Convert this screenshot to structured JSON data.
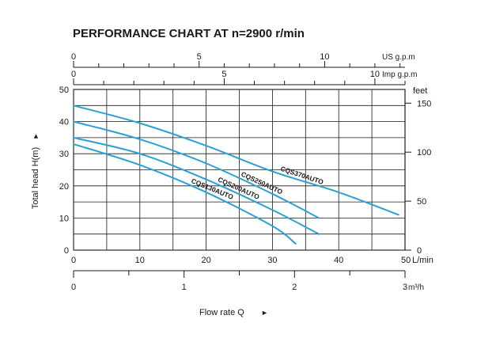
{
  "chart_data": {
    "type": "line",
    "title": "PERFORMANCE CHART AT n=2900 r/min",
    "xlabel": "Flow rate  Q",
    "ylabel": "Total  head H(m)",
    "xlim": [
      0,
      50
    ],
    "ylim": [
      0,
      50
    ],
    "grid": true,
    "x_unit": "L/min",
    "x_ticks": [
      0,
      10,
      20,
      30,
      40,
      50
    ],
    "y_ticks": [
      0,
      10,
      20,
      30,
      40,
      50
    ],
    "secondary_axes": {
      "us_gpm": {
        "label": "US g.p.m",
        "max": 13.2,
        "ticks": [
          0,
          5,
          10
        ]
      },
      "imp_gpm": {
        "label": "Imp g.p.m",
        "max": 11,
        "ticks": [
          0,
          5,
          10
        ]
      },
      "feet": {
        "label": "feet",
        "max": 164,
        "ticks": [
          0,
          50,
          100,
          150
        ]
      },
      "m3h": {
        "label": "m³/h",
        "max": 3,
        "ticks": [
          0,
          1,
          2,
          3
        ]
      }
    },
    "series": [
      {
        "name": "CQS370AUTO",
        "x": [
          0,
          10,
          20,
          30,
          40,
          49
        ],
        "y": [
          45,
          39.5,
          32.5,
          24.5,
          18,
          11
        ]
      },
      {
        "name": "CQS250AUTO",
        "x": [
          0,
          10,
          20,
          30,
          37
        ],
        "y": [
          40,
          34.5,
          27,
          17.5,
          10
        ]
      },
      {
        "name": "CQS200AUTO",
        "x": [
          0,
          10,
          20,
          30,
          37
        ],
        "y": [
          35,
          30,
          22,
          12.5,
          5
        ]
      },
      {
        "name": "CQS130AUTO",
        "x": [
          0,
          10,
          20,
          30,
          33.5
        ],
        "y": [
          33,
          26.5,
          18,
          7.5,
          2
        ]
      }
    ],
    "colors": {
      "curve": "#2aa0d6",
      "grid": "#1a1a1a"
    }
  }
}
